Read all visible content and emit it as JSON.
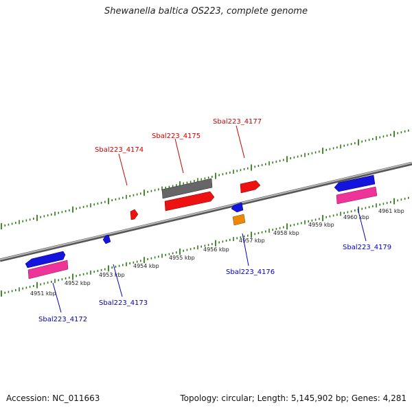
{
  "title": "Shewanella baltica OS223, complete genome",
  "footer": {
    "accession": "Accession: NC_011663",
    "topology": "Topology: circular; Length: 5,145,902 bp; Genes: 4,281"
  },
  "colors": {
    "backbone": "#8a8a8a",
    "ticks": "#2e7d14",
    "forward_label": "#cc0000",
    "reverse_label": "#0000bb",
    "gene_red": "#ee1111",
    "gene_grey": "#666666",
    "gene_blue": "#1414dd",
    "gene_pink": "#ee3399",
    "gene_orange": "#ee8800"
  },
  "kbp_labels": [
    "4951 kbp",
    "4952 kbp",
    "4953 kbp",
    "4954 kbp",
    "4955 kbp",
    "4956 kbp",
    "4957 kbp",
    "4958 kbp",
    "4959 kbp",
    "4960 kbp",
    "4961 kbp"
  ],
  "genes": {
    "g4172": "Sbal223_4172",
    "g4173": "Sbal223_4173",
    "g4174": "Sbal223_4174",
    "g4175": "Sbal223_4175",
    "g4176": "Sbal223_4176",
    "g4177": "Sbal223_4177",
    "g4179": "Sbal223_4179"
  }
}
